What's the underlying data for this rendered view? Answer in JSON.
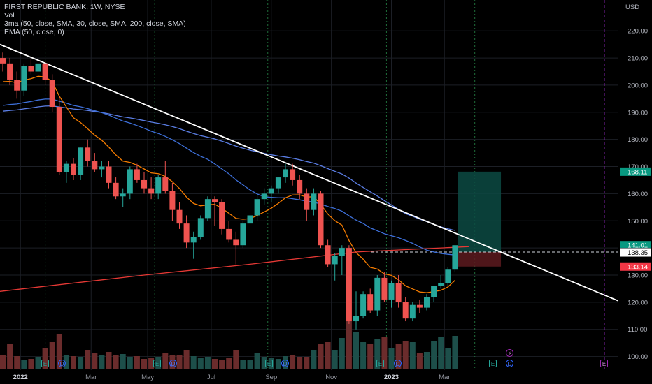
{
  "legend": {
    "symbol_line": "FIRST REPUBLIC BANK, 1W, NYSE",
    "vol_label": "Vol",
    "ma_line": "3ma (50, close, SMA, 30, close, SMA, 200, close, SMA)",
    "ema_line": "EMA (50, close, 0)"
  },
  "currency": "USD",
  "chart_data": {
    "type": "candlestick",
    "y_axis": {
      "min": 95,
      "max": 227,
      "ticks": [
        220,
        210,
        200,
        190,
        180,
        170,
        160,
        150,
        140,
        130,
        120,
        110,
        100
      ],
      "tick_labels": [
        "220.00",
        "210.00",
        "200.00",
        "190.00",
        "180.00",
        "170.00",
        "160.00",
        "150.00",
        "140.00",
        "130.00",
        "120.00",
        "110.00",
        "100.00"
      ]
    },
    "x_axis": {
      "labels": [
        "2022",
        "Mar",
        "May",
        "Jul",
        "Sep",
        "Nov",
        "2023",
        "Mar"
      ],
      "label_week_index": [
        2.5,
        12.5,
        20.5,
        29.5,
        38,
        46.5,
        55,
        62.5
      ]
    },
    "price_labels": [
      {
        "text": "168.11",
        "value": 168.11,
        "color": "#089981"
      },
      {
        "text": "141.01",
        "value": 141.01,
        "color": "#089981"
      },
      {
        "text": "138.50",
        "value": 138.5,
        "color": "#1e222d"
      },
      {
        "text": "138.35",
        "value": 138.35,
        "color": "#ffffff"
      },
      {
        "text": "133.14",
        "value": 133.14,
        "color": "#f23645"
      }
    ],
    "colors": {
      "up": "#26a69a",
      "down": "#ef5350",
      "sma50": "#5b7ee5",
      "sma30": "#3d6fd8",
      "sma200": "#e53935",
      "ema50": "#f57c00",
      "trend": "#ffffff"
    },
    "candles": [
      [
        210,
        212,
        205,
        208
      ],
      [
        208,
        210,
        200,
        202
      ],
      [
        202,
        205,
        195,
        198
      ],
      [
        198,
        208,
        196,
        207
      ],
      [
        207,
        210,
        204,
        205
      ],
      [
        205,
        209,
        202,
        208
      ],
      [
        208,
        209,
        200,
        202
      ],
      [
        202,
        204,
        190,
        192
      ],
      [
        192,
        196,
        167,
        168
      ],
      [
        168,
        172,
        164,
        171
      ],
      [
        171,
        173,
        165,
        167
      ],
      [
        167,
        177,
        165,
        177
      ],
      [
        177,
        180,
        170,
        172
      ],
      [
        172,
        175,
        168,
        169
      ],
      [
        169,
        172,
        166,
        170
      ],
      [
        170,
        172,
        162,
        164
      ],
      [
        164,
        166,
        158,
        159
      ],
      [
        159,
        162,
        155,
        160
      ],
      [
        160,
        170,
        158,
        169
      ],
      [
        169,
        171,
        164,
        165
      ],
      [
        165,
        168,
        160,
        162
      ],
      [
        162,
        166,
        158,
        160
      ],
      [
        160,
        167,
        158,
        166
      ],
      [
        166,
        172,
        160,
        161
      ],
      [
        161,
        164,
        150,
        154
      ],
      [
        154,
        157,
        147,
        149
      ],
      [
        149,
        152,
        140,
        142
      ],
      [
        142,
        146,
        136,
        144
      ],
      [
        144,
        152,
        143,
        151
      ],
      [
        151,
        159,
        150,
        158
      ],
      [
        158,
        159,
        148,
        157
      ],
      [
        157,
        158,
        145,
        147
      ],
      [
        147,
        150,
        142,
        143
      ],
      [
        143,
        146,
        134,
        141
      ],
      [
        141,
        150,
        140,
        149
      ],
      [
        149,
        154,
        144,
        152
      ],
      [
        152,
        160,
        150,
        158
      ],
      [
        158,
        162,
        156,
        160
      ],
      [
        160,
        163,
        157,
        162
      ],
      [
        162,
        166,
        160,
        166
      ],
      [
        166,
        171,
        164,
        169
      ],
      [
        169,
        171,
        163,
        165
      ],
      [
        165,
        167,
        158,
        160
      ],
      [
        160,
        162,
        150,
        154
      ],
      [
        154,
        162,
        152,
        160
      ],
      [
        160,
        161,
        140,
        141
      ],
      [
        141,
        143,
        133,
        134
      ],
      [
        134,
        138,
        128,
        137
      ],
      [
        137,
        141,
        130,
        140
      ],
      [
        140,
        141,
        112,
        113
      ],
      [
        113,
        124,
        110,
        115
      ],
      [
        115,
        124,
        114,
        123
      ],
      [
        123,
        125,
        116,
        117
      ],
      [
        117,
        130,
        115,
        129
      ],
      [
        129,
        131,
        120,
        121
      ],
      [
        121,
        128,
        118,
        127
      ],
      [
        127,
        130,
        118,
        120
      ],
      [
        120,
        122,
        113,
        114
      ],
      [
        114,
        120,
        113,
        119
      ],
      [
        119,
        121,
        116,
        118
      ],
      [
        118,
        123,
        117,
        122
      ],
      [
        122,
        126,
        120,
        126
      ],
      [
        126,
        130,
        125,
        127
      ],
      [
        127,
        133,
        126,
        132
      ],
      [
        132,
        141,
        131,
        141
      ]
    ],
    "trade_box": {
      "entry": 138.5,
      "target": 168.11,
      "stop": 133.14,
      "start_week": 64.4,
      "end_week": 70.5
    }
  }
}
